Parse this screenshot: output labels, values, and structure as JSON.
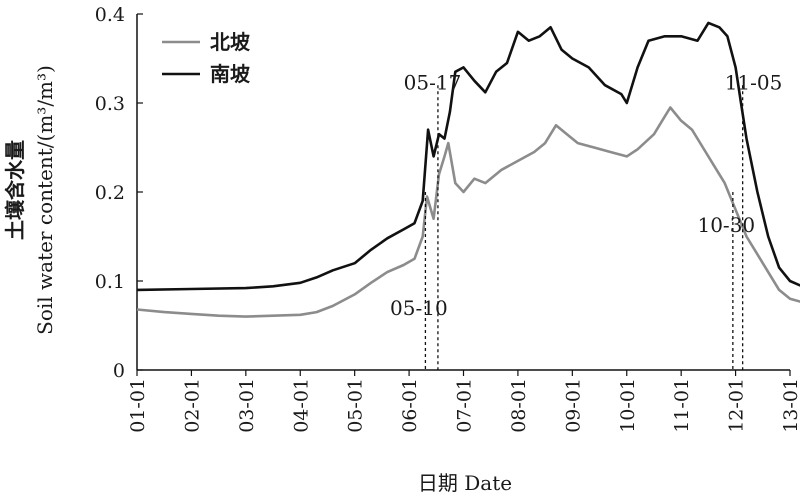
{
  "chart_data": {
    "type": "line",
    "xlabel": "日期 Date",
    "ylabel_cn": "土壤含水量",
    "ylabel_en": "Soil water content/(m³/m³)",
    "ylim": [
      0,
      0.4
    ],
    "y_ticks": [
      0,
      0.1,
      0.2,
      0.3,
      0.4
    ],
    "y_tick_labels": [
      "0",
      "0.1",
      "0.2",
      "0.3",
      "0.4"
    ],
    "x_ticks": [
      0,
      1,
      2,
      3,
      4,
      5,
      6,
      7,
      8,
      9,
      10,
      11,
      12
    ],
    "x_tick_labels": [
      "01-01",
      "02-01",
      "03-01",
      "04-01",
      "05-01",
      "06-01",
      "07-01",
      "08-01",
      "09-01",
      "10-01",
      "11-01",
      "12-01",
      "13-01"
    ],
    "legend": "top-left",
    "series": [
      {
        "name": "北坡",
        "color": "#8c8c8c",
        "points": [
          [
            0,
            0.068
          ],
          [
            0.5,
            0.065
          ],
          [
            1.0,
            0.063
          ],
          [
            1.5,
            0.061
          ],
          [
            2.0,
            0.06
          ],
          [
            2.5,
            0.061
          ],
          [
            3.0,
            0.062
          ],
          [
            3.3,
            0.065
          ],
          [
            3.6,
            0.072
          ],
          [
            4.0,
            0.085
          ],
          [
            4.3,
            0.098
          ],
          [
            4.6,
            0.11
          ],
          [
            4.9,
            0.118
          ],
          [
            5.1,
            0.125
          ],
          [
            5.25,
            0.15
          ],
          [
            5.33,
            0.195
          ],
          [
            5.45,
            0.17
          ],
          [
            5.55,
            0.22
          ],
          [
            5.65,
            0.24
          ],
          [
            5.72,
            0.255
          ],
          [
            5.85,
            0.21
          ],
          [
            6.0,
            0.2
          ],
          [
            6.2,
            0.215
          ],
          [
            6.4,
            0.21
          ],
          [
            6.7,
            0.225
          ],
          [
            7.0,
            0.235
          ],
          [
            7.3,
            0.245
          ],
          [
            7.5,
            0.255
          ],
          [
            7.7,
            0.275
          ],
          [
            7.9,
            0.265
          ],
          [
            8.1,
            0.255
          ],
          [
            8.4,
            0.25
          ],
          [
            8.7,
            0.245
          ],
          [
            9.0,
            0.24
          ],
          [
            9.2,
            0.248
          ],
          [
            9.5,
            0.265
          ],
          [
            9.7,
            0.285
          ],
          [
            9.8,
            0.295
          ],
          [
            10.0,
            0.28
          ],
          [
            10.2,
            0.27
          ],
          [
            10.4,
            0.25
          ],
          [
            10.6,
            0.23
          ],
          [
            10.8,
            0.21
          ],
          [
            11.0,
            0.18
          ],
          [
            11.2,
            0.15
          ],
          [
            11.4,
            0.13
          ],
          [
            11.6,
            0.11
          ],
          [
            11.8,
            0.09
          ],
          [
            12.0,
            0.08
          ],
          [
            12.3,
            0.075
          ],
          [
            12.6,
            0.072
          ],
          [
            12.85,
            0.07
          ],
          [
            13.0,
            0.062
          ]
        ]
      },
      {
        "name": "南坡",
        "color": "#111111",
        "points": [
          [
            0,
            0.09
          ],
          [
            1.0,
            0.091
          ],
          [
            2.0,
            0.092
          ],
          [
            2.5,
            0.094
          ],
          [
            3.0,
            0.098
          ],
          [
            3.3,
            0.104
          ],
          [
            3.6,
            0.112
          ],
          [
            4.0,
            0.12
          ],
          [
            4.3,
            0.135
          ],
          [
            4.6,
            0.148
          ],
          [
            4.9,
            0.158
          ],
          [
            5.1,
            0.165
          ],
          [
            5.25,
            0.19
          ],
          [
            5.35,
            0.27
          ],
          [
            5.45,
            0.24
          ],
          [
            5.55,
            0.265
          ],
          [
            5.65,
            0.26
          ],
          [
            5.75,
            0.29
          ],
          [
            5.85,
            0.335
          ],
          [
            6.0,
            0.34
          ],
          [
            6.2,
            0.325
          ],
          [
            6.4,
            0.312
          ],
          [
            6.6,
            0.335
          ],
          [
            6.8,
            0.345
          ],
          [
            7.0,
            0.38
          ],
          [
            7.2,
            0.37
          ],
          [
            7.4,
            0.375
          ],
          [
            7.6,
            0.385
          ],
          [
            7.8,
            0.36
          ],
          [
            8.0,
            0.35
          ],
          [
            8.3,
            0.34
          ],
          [
            8.6,
            0.32
          ],
          [
            8.9,
            0.31
          ],
          [
            9.0,
            0.3
          ],
          [
            9.2,
            0.34
          ],
          [
            9.4,
            0.37
          ],
          [
            9.7,
            0.375
          ],
          [
            10.0,
            0.375
          ],
          [
            10.3,
            0.37
          ],
          [
            10.5,
            0.39
          ],
          [
            10.7,
            0.385
          ],
          [
            10.85,
            0.375
          ],
          [
            11.0,
            0.34
          ],
          [
            11.1,
            0.3
          ],
          [
            11.2,
            0.26
          ],
          [
            11.4,
            0.2
          ],
          [
            11.6,
            0.15
          ],
          [
            11.8,
            0.115
          ],
          [
            12.0,
            0.1
          ],
          [
            12.3,
            0.092
          ],
          [
            12.6,
            0.088
          ],
          [
            13.0,
            0.085
          ]
        ]
      }
    ],
    "annotations": [
      {
        "label": "05-10",
        "x": 5.3,
        "y_top": 0.2,
        "label_x": 4.65,
        "label_y": 0.062
      },
      {
        "label": "05-17",
        "x": 5.53,
        "y_top": 0.32,
        "label_x": 4.9,
        "label_y": 0.315
      },
      {
        "label": "10-30",
        "x": 10.95,
        "y_top": 0.2,
        "label_x": 10.3,
        "label_y": 0.155
      },
      {
        "label": "11-05",
        "x": 11.13,
        "y_top": 0.32,
        "label_x": 10.8,
        "label_y": 0.315
      }
    ]
  }
}
